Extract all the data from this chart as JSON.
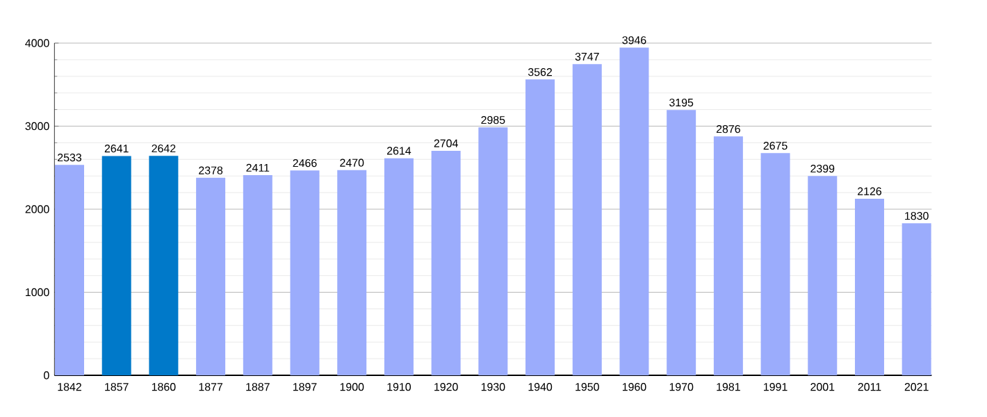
{
  "chart_data": {
    "type": "bar",
    "categories": [
      "1842",
      "1857",
      "1860",
      "1877",
      "1887",
      "1897",
      "1900",
      "1910",
      "1920",
      "1930",
      "1940",
      "1950",
      "1960",
      "1970",
      "1981",
      "1991",
      "2001",
      "2011",
      "2021"
    ],
    "values": [
      2533,
      2641,
      2642,
      2378,
      2411,
      2466,
      2470,
      2614,
      2704,
      2985,
      3562,
      3747,
      3946,
      3195,
      2876,
      2675,
      2399,
      2126,
      1830
    ],
    "colors": [
      "#9bacfc",
      "#0079c9",
      "#0079c9",
      "#9bacfc",
      "#9bacfc",
      "#9bacfc",
      "#9bacfc",
      "#9bacfc",
      "#9bacfc",
      "#9bacfc",
      "#9bacfc",
      "#9bacfc",
      "#9bacfc",
      "#9bacfc",
      "#9bacfc",
      "#9bacfc",
      "#9bacfc",
      "#9bacfc",
      "#9bacfc"
    ],
    "ylim": [
      0,
      4000
    ],
    "yticks": [
      0,
      1000,
      2000,
      3000,
      4000
    ],
    "grid": "y",
    "data_labels": true
  }
}
